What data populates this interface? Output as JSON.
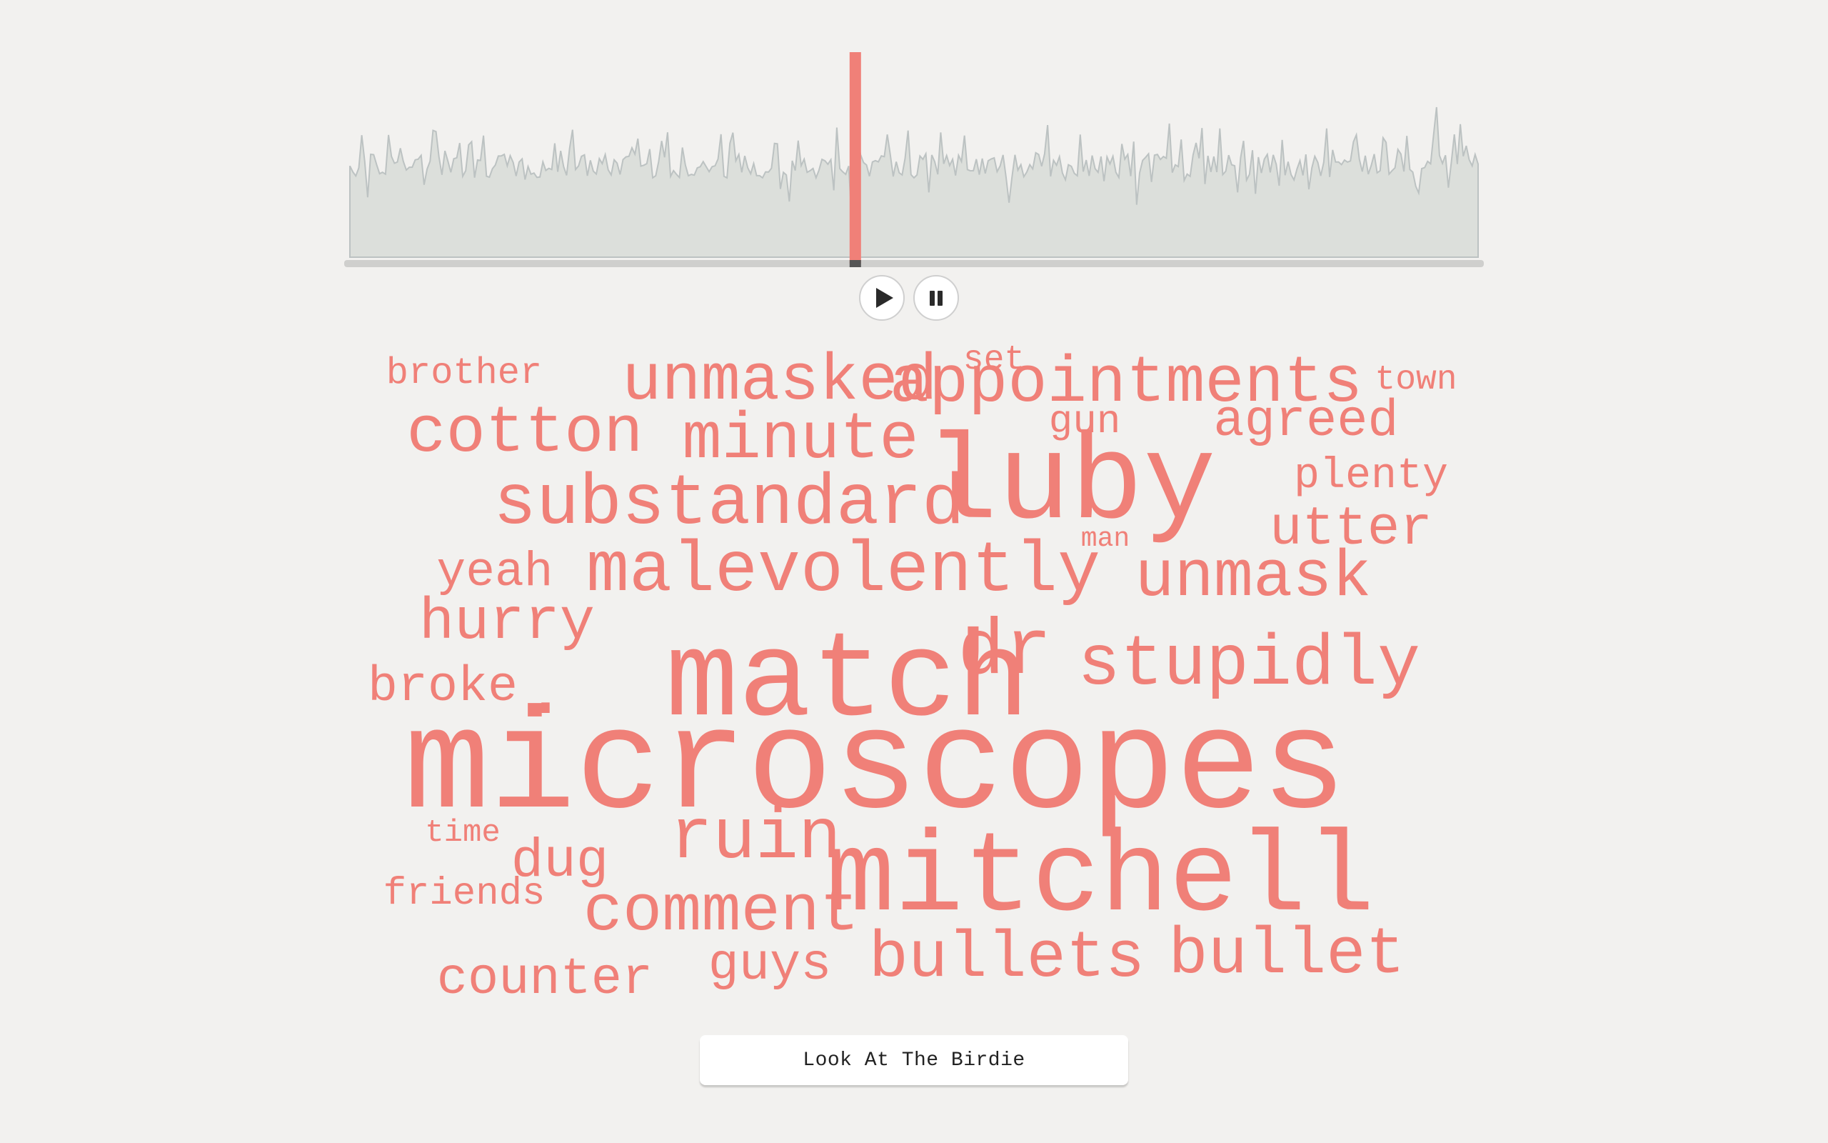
{
  "player": {
    "play_icon": "play-icon",
    "pause_icon": "pause-icon",
    "accent_color": "#f08078",
    "waveform_fill": "#dcdfdb",
    "waveform_stroke": "#bcc2c2",
    "progress": 0.448
  },
  "word_cloud": {
    "color": "#f08078",
    "words": [
      {
        "text": "set",
        "size": 48
      },
      {
        "text": "brother",
        "size": 52
      },
      {
        "text": "unmasked",
        "size": 92
      },
      {
        "text": "appointments",
        "size": 92
      },
      {
        "text": "town",
        "size": 48
      },
      {
        "text": "cotton",
        "size": 92
      },
      {
        "text": "minute",
        "size": 92
      },
      {
        "text": "gun",
        "size": 56
      },
      {
        "text": "agreed",
        "size": 72
      },
      {
        "text": "plenty",
        "size": 60
      },
      {
        "text": "luby",
        "size": 170
      },
      {
        "text": "substandard",
        "size": 100
      },
      {
        "text": "utter",
        "size": 76
      },
      {
        "text": "man",
        "size": 38
      },
      {
        "text": "yeah",
        "size": 68
      },
      {
        "text": "malevolently",
        "size": 100
      },
      {
        "text": "unmask",
        "size": 92
      },
      {
        "text": "hurry",
        "size": 82
      },
      {
        "text": "dr",
        "size": 110
      },
      {
        "text": "match",
        "size": 170
      },
      {
        "text": "stupidly",
        "size": 100
      },
      {
        "text": "broke",
        "size": 70
      },
      {
        "text": ".",
        "size": 100
      },
      {
        "text": "microscopes",
        "size": 200
      },
      {
        "text": "time",
        "size": 44
      },
      {
        "text": "dug",
        "size": 76
      },
      {
        "text": "ruin",
        "size": 100
      },
      {
        "text": "mitchell",
        "size": 160
      },
      {
        "text": "friends",
        "size": 54
      },
      {
        "text": "comment",
        "size": 92
      },
      {
        "text": "bullets",
        "size": 92
      },
      {
        "text": "bullet",
        "size": 92
      },
      {
        "text": "counter",
        "size": 72
      },
      {
        "text": "guys",
        "size": 72
      }
    ]
  },
  "song_title": "Look At The Birdie"
}
